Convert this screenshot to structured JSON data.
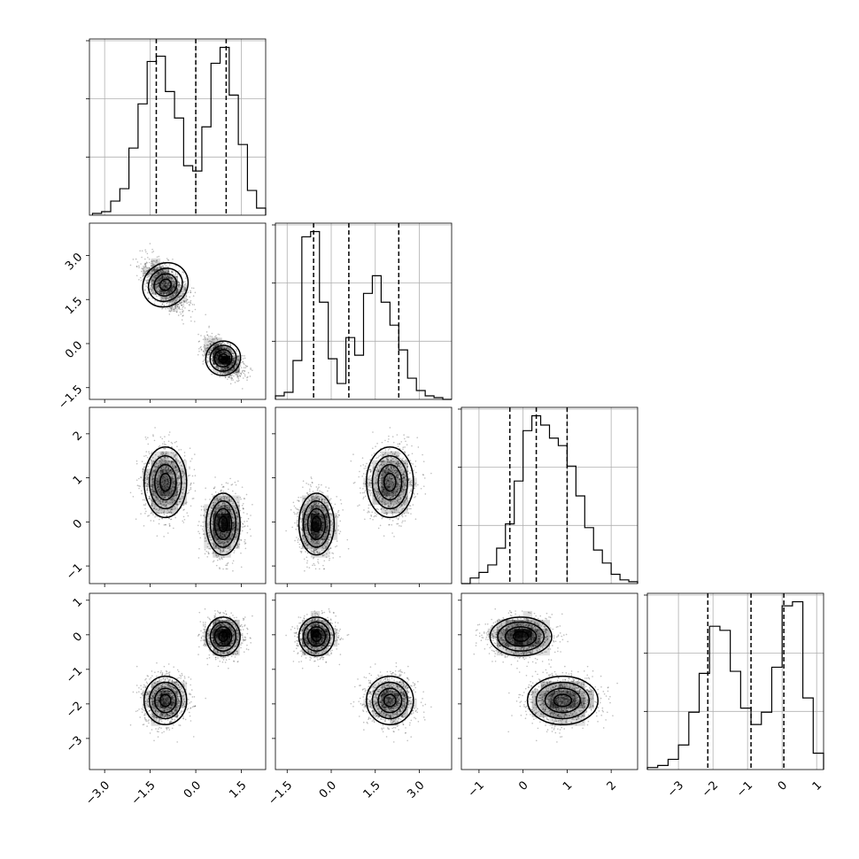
{
  "chart_data": {
    "type": "corner",
    "grid": true,
    "quantiles": [
      0.16,
      0.5,
      0.84
    ],
    "parameters": [
      {
        "xlim": [
          -3.5,
          2.3
        ],
        "ticks": [
          -3.0,
          -1.5,
          0.0,
          1.5
        ],
        "tick_labels": [
          "−3.0",
          "−1.5",
          "0.0",
          "1.5"
        ],
        "quantile_values": [
          -1.3,
          0.0,
          1.0
        ],
        "hist": {
          "bins": [
            -3.4,
            -3.1,
            -2.8,
            -2.5,
            -2.2,
            -1.9,
            -1.6,
            -1.3,
            -1.0,
            -0.7,
            -0.4,
            -0.1,
            0.2,
            0.5,
            0.8,
            1.1,
            1.4,
            1.7,
            2.0,
            2.3
          ],
          "counts": [
            1,
            2,
            8,
            15,
            38,
            63,
            87,
            90,
            70,
            55,
            28,
            25,
            50,
            86,
            95,
            68,
            40,
            14,
            4
          ]
        }
      },
      {
        "xlim": [
          -1.9,
          4.1
        ],
        "ticks": [
          -1.5,
          0.0,
          1.5,
          3.0
        ],
        "tick_labels": [
          "−1.5",
          "0.0",
          "1.5",
          "3.0"
        ],
        "quantile_values": [
          -0.6,
          0.6,
          2.3
        ],
        "hist": {
          "bins": [
            -1.9,
            -1.6,
            -1.3,
            -1.0,
            -0.7,
            -0.4,
            -0.1,
            0.2,
            0.5,
            0.8,
            1.1,
            1.4,
            1.7,
            2.0,
            2.3,
            2.6,
            2.9,
            3.2,
            3.5,
            3.8,
            4.1
          ],
          "counts": [
            2,
            4,
            22,
            92,
            95,
            55,
            23,
            9,
            35,
            25,
            60,
            70,
            55,
            42,
            28,
            12,
            5,
            2,
            1,
            0
          ]
        }
      },
      {
        "xlim": [
          -1.4,
          2.6
        ],
        "ticks": [
          -1,
          0,
          1,
          2
        ],
        "tick_labels": [
          "−1",
          "0",
          "1",
          "2"
        ],
        "quantile_values": [
          -0.3,
          0.3,
          1.0
        ],
        "hist": {
          "bins": [
            -1.4,
            -1.2,
            -1.0,
            -0.8,
            -0.6,
            -0.4,
            -0.2,
            0.0,
            0.2,
            0.4,
            0.6,
            0.8,
            1.0,
            1.2,
            1.4,
            1.6,
            1.8,
            2.0,
            2.2,
            2.4,
            2.6
          ],
          "counts": [
            0,
            3,
            6,
            10,
            19,
            32,
            55,
            82,
            90,
            85,
            78,
            74,
            63,
            47,
            30,
            18,
            11,
            5,
            2,
            1
          ]
        }
      },
      {
        "xlim": [
          -3.9,
          1.2
        ],
        "ticks": [
          -3,
          -2,
          -1,
          0,
          1
        ],
        "tick_labels": [
          "−3",
          "−2",
          "−1",
          "0",
          "1"
        ],
        "quantile_values": [
          -2.15,
          -0.9,
          0.05
        ],
        "hist": {
          "bins": [
            -3.9,
            -3.6,
            -3.3,
            -3.0,
            -2.7,
            -2.4,
            -2.1,
            -1.8,
            -1.5,
            -1.2,
            -0.9,
            -0.6,
            -0.3,
            0.0,
            0.3,
            0.6,
            0.9,
            1.2
          ],
          "counts": [
            1,
            2,
            5,
            12,
            28,
            47,
            70,
            68,
            48,
            30,
            22,
            28,
            50,
            80,
            82,
            35,
            8
          ]
        }
      }
    ],
    "modes": [
      {
        "means": [
          -1.0,
          2.0,
          0.9,
          -1.9
        ],
        "sds": [
          0.35,
          0.4,
          0.4,
          0.35
        ],
        "weight": 0.5
      },
      {
        "means": [
          0.9,
          -0.5,
          -0.05,
          -0.05
        ],
        "sds": [
          0.28,
          0.3,
          0.35,
          0.28
        ],
        "weight": 0.5
      }
    ],
    "correlation": {
      "param0_param1": -0.55
    }
  }
}
